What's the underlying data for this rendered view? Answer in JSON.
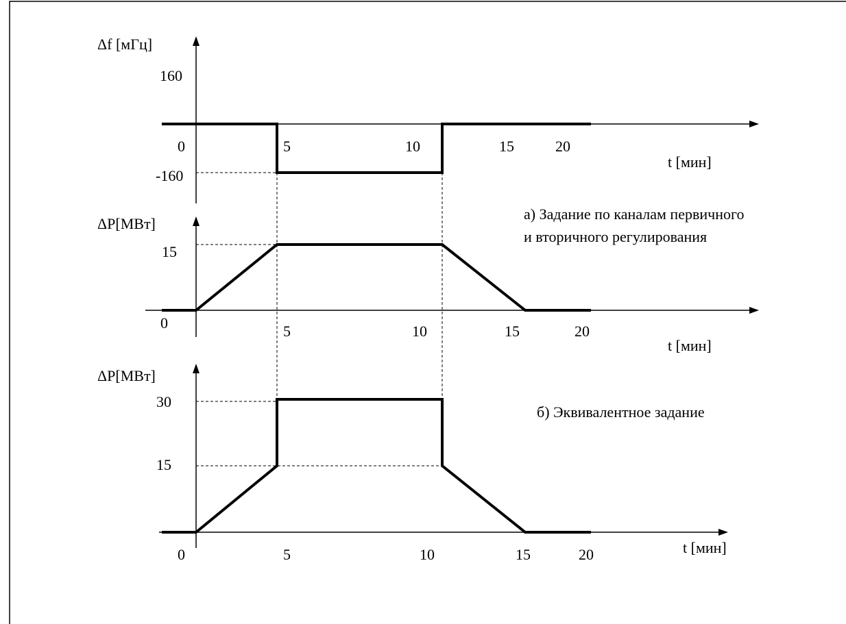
{
  "chart_data": [
    {
      "type": "line",
      "id": "freq",
      "ylabel": "Δf [мГц]",
      "xlabel": "t [мин]",
      "y_ticks": [
        "160",
        "-160"
      ],
      "x_ticks": [
        "0",
        "5",
        "10",
        "15",
        "20"
      ],
      "series": [
        {
          "x": [
            -2,
            5,
            5,
            15,
            15,
            20,
            25
          ],
          "y": [
            0,
            0,
            -160,
            -160,
            0,
            0,
            0
          ]
        }
      ]
    },
    {
      "type": "line",
      "id": "power-a",
      "ylabel": "ΔP[МВт]",
      "xlabel": "t [мин]",
      "y_ticks": [
        "15"
      ],
      "x_ticks": [
        "0",
        "5",
        "10",
        "15",
        "20"
      ],
      "annotation": [
        "а) Задание по каналам первичного",
        "и вторичного регулирования"
      ],
      "series": [
        {
          "x": [
            -2,
            0,
            5,
            15,
            20,
            25
          ],
          "y": [
            0,
            0,
            15,
            15,
            0,
            0
          ]
        }
      ]
    },
    {
      "type": "line",
      "id": "power-b",
      "ylabel": "ΔP[МВт]",
      "xlabel": "t [мин]",
      "y_ticks": [
        "30",
        "15"
      ],
      "x_ticks": [
        "0",
        "5",
        "10",
        "15",
        "20"
      ],
      "annotation": [
        "б) Эквивалентное задание"
      ],
      "series": [
        {
          "x": [
            -2,
            0,
            5,
            5,
            15,
            15,
            20,
            25
          ],
          "y": [
            0,
            0,
            15,
            30,
            30,
            15,
            0,
            0
          ]
        }
      ]
    }
  ]
}
